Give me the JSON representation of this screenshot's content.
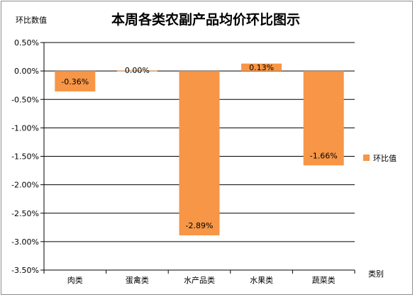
{
  "chart_data": {
    "type": "bar",
    "title": "本周各类农副产品均价环比图示",
    "ylabel": "环比数值",
    "xlabel": "类别",
    "categories": [
      "肉类",
      "蛋禽类",
      "水产品类",
      "水果类",
      "蔬菜类"
    ],
    "series": [
      {
        "name": "环比值",
        "values": [
          -0.36,
          0.0,
          -2.89,
          0.13,
          -1.66
        ],
        "data_labels": [
          "-0.36%",
          "0.00%",
          "-2.89%",
          "0.13%",
          "-1.66%"
        ],
        "color": "#f79646"
      }
    ],
    "yticks": [
      0.5,
      0.0,
      -0.5,
      -1.0,
      -1.5,
      -2.0,
      -2.5,
      -3.0,
      -3.5
    ],
    "ytick_labels": [
      "0.50%",
      "0.00%",
      "-0.50%",
      "-1.00%",
      "-1.50%",
      "-2.00%",
      "-2.50%",
      "-3.00%",
      "-3.50%"
    ],
    "ylim": [
      -3.5,
      0.5
    ],
    "grid": true,
    "legend": "right",
    "colors": {
      "grid": "#000000",
      "bar": "#f79646",
      "frame": "#8c8c8c"
    }
  }
}
